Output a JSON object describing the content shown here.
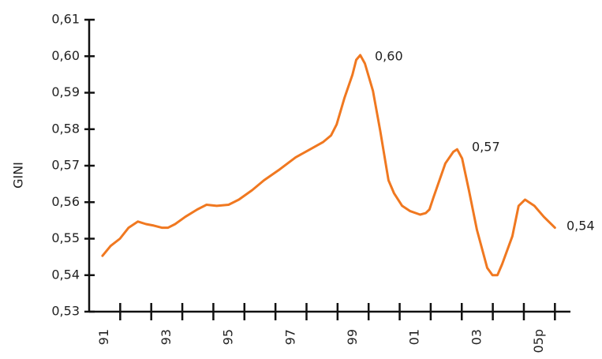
{
  "chart_data": {
    "type": "line",
    "y_label": "GINI",
    "color": "#f07820",
    "x": [
      1990.93,
      1991.19,
      1991.49,
      1991.77,
      1992.07,
      1992.33,
      1992.58,
      1992.84,
      1993.04,
      1993.27,
      1993.6,
      1993.98,
      1994.28,
      1994.61,
      1994.99,
      1995.32,
      1995.75,
      1996.13,
      1996.64,
      1997.15,
      1997.58,
      1998.04,
      1998.29,
      1998.47,
      1998.72,
      1998.98,
      1999.1,
      1999.23,
      1999.38,
      1999.64,
      1999.87,
      2000.14,
      2000.32,
      2000.58,
      2000.83,
      2001.16,
      2001.34,
      2001.46,
      2001.59,
      2001.97,
      2002.23,
      2002.35,
      2002.51,
      2002.73,
      2002.99,
      2003.32,
      2003.49,
      2003.65,
      2003.8,
      2004.13,
      2004.33,
      2004.54,
      2004.84,
      2005.14,
      2005.5
    ],
    "values": [
      0.5453,
      0.548,
      0.55,
      0.553,
      0.5547,
      0.554,
      0.5536,
      0.553,
      0.553,
      0.554,
      0.556,
      0.558,
      0.5593,
      0.559,
      0.5593,
      0.5607,
      0.5633,
      0.566,
      0.569,
      0.5723,
      0.5743,
      0.5765,
      0.5783,
      0.5813,
      0.5885,
      0.5949,
      0.599,
      0.6003,
      0.598,
      0.5905,
      0.5797,
      0.566,
      0.5624,
      0.559,
      0.5576,
      0.5566,
      0.557,
      0.558,
      0.5613,
      0.5706,
      0.5738,
      0.5745,
      0.572,
      0.5633,
      0.5524,
      0.542,
      0.54,
      0.54,
      0.543,
      0.5507,
      0.559,
      0.5607,
      0.559,
      0.556,
      0.553
    ],
    "annotations": [
      "0,60",
      "0,57",
      "0,54"
    ],
    "xlim": [
      1990.5,
      2006
    ],
    "xticks": [
      {
        "value": 1991,
        "label": "91"
      },
      {
        "value": 1993,
        "label": "93"
      },
      {
        "value": 1995,
        "label": "95"
      },
      {
        "value": 1997,
        "label": "97"
      },
      {
        "value": 1999,
        "label": "99"
      },
      {
        "value": 2001,
        "label": "01"
      },
      {
        "value": 2003,
        "label": "03"
      },
      {
        "value": 2005,
        "label": "05p"
      }
    ],
    "x_tick_marks": [
      1991.5,
      1992.5,
      1993.5,
      1994.5,
      1995.5,
      1996.5,
      1997.5,
      1998.5,
      1999.5,
      2000.5,
      2001.5,
      2002.5,
      2003.5,
      2004.5,
      2005.5
    ],
    "ylim": [
      0.53,
      0.61
    ],
    "yticks": [
      {
        "value": 0.53,
        "label": "0,53"
      },
      {
        "value": 0.54,
        "label": "0,54"
      },
      {
        "value": 0.55,
        "label": "0,55"
      },
      {
        "value": 0.56,
        "label": "0,56"
      },
      {
        "value": 0.57,
        "label": "0,57"
      },
      {
        "value": 0.58,
        "label": "0,58"
      },
      {
        "value": 0.59,
        "label": "0,59"
      },
      {
        "value": 0.6,
        "label": "0,60"
      },
      {
        "value": 0.61,
        "label": "0,61"
      }
    ]
  }
}
